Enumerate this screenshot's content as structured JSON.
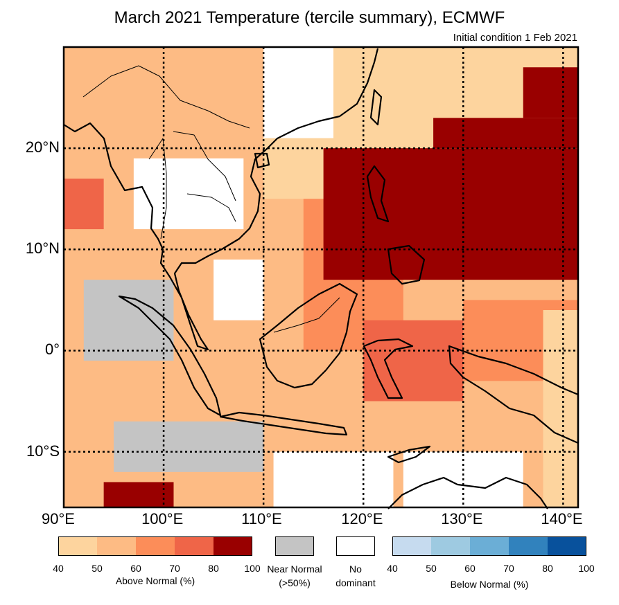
{
  "title": "March 2021 Temperature (tercile summary), ECMWF",
  "subtitle": "Initial condition 1 Feb 2021",
  "axes": {
    "lon_labels": [
      "90°E",
      "100°E",
      "110°E",
      "120°E",
      "130°E",
      "140°E"
    ],
    "lat_labels": [
      "20°N",
      "10°N",
      "0°",
      "10°S"
    ],
    "lon_range": [
      90,
      141.5
    ],
    "lat_range": [
      -15.5,
      30
    ]
  },
  "legend": {
    "above": {
      "caption": "Above Normal (%)",
      "ticks": [
        "40",
        "50",
        "60",
        "70",
        "80",
        "100"
      ],
      "colors": [
        "#fdd49e",
        "#fdbb84",
        "#fc8d59",
        "#ef6548",
        "#990000"
      ]
    },
    "near": {
      "caption_line1": "Near Normal",
      "caption_line2": "(>50%)",
      "color": "#c4c4c4"
    },
    "none": {
      "caption_line1": "No",
      "caption_line2": "dominant",
      "color": "#ffffff"
    },
    "below": {
      "caption": "Below Normal (%)",
      "ticks": [
        "40",
        "50",
        "60",
        "70",
        "80",
        "100"
      ],
      "colors": [
        "#c6dbef",
        "#9ecae1",
        "#6baed6",
        "#3182bd",
        "#08519c"
      ]
    }
  },
  "chart_data": {
    "type": "heatmap",
    "title": "March 2021 Temperature (tercile summary), ECMWF",
    "legend_order": [
      "no-dominant",
      "above-40",
      "above-50",
      "above-60",
      "above-70",
      "above-80",
      "near-normal",
      "below-40"
    ],
    "regions": [
      {
        "cat": 2,
        "lon": [
          90,
          141.5
        ],
        "lat": [
          -15.5,
          30
        ],
        "label": "background above-50"
      },
      {
        "cat": 1,
        "lon": [
          110,
          141.5
        ],
        "lat": [
          15,
          30
        ],
        "label": "north ocean above-40"
      },
      {
        "cat": 0,
        "lon": [
          110,
          117
        ],
        "lat": [
          21,
          30
        ],
        "label": "south china no dominant"
      },
      {
        "cat": 0,
        "lon": [
          97,
          108
        ],
        "lat": [
          12,
          19
        ],
        "label": "thailand no dominant"
      },
      {
        "cat": 0,
        "lon": [
          105,
          110
        ],
        "lat": [
          3,
          9
        ],
        "label": "gulf no dominant"
      },
      {
        "cat": 6,
        "lon": [
          92,
          101
        ],
        "lat": [
          -1,
          7
        ],
        "label": "sumatra near normal"
      },
      {
        "cat": 6,
        "lon": [
          95,
          110
        ],
        "lat": [
          -12,
          -7
        ],
        "label": "indian ocean near normal"
      },
      {
        "cat": 0,
        "lon": [
          111,
          123
        ],
        "lat": [
          -15.5,
          -10
        ],
        "label": "south no dominant"
      },
      {
        "cat": 0,
        "lon": [
          124,
          136
        ],
        "lat": [
          -15.5,
          -10
        ],
        "label": "australia no dominant"
      },
      {
        "cat": 3,
        "lon": [
          114,
          124
        ],
        "lat": [
          0,
          15
        ],
        "label": "south china sea above-60"
      },
      {
        "cat": 4,
        "lon": [
          120,
          130
        ],
        "lat": [
          -5,
          3
        ],
        "label": "sulawesi above-70"
      },
      {
        "cat": 5,
        "lon": [
          116,
          141.5
        ],
        "lat": [
          7,
          20
        ],
        "label": "philippines above-80"
      },
      {
        "cat": 5,
        "lon": [
          127,
          141.5
        ],
        "lat": [
          20,
          23
        ],
        "label": "pacific above-80"
      },
      {
        "cat": 5,
        "lon": [
          136,
          141.5
        ],
        "lat": [
          23,
          28
        ],
        "label": "pacific ne above-80"
      },
      {
        "cat": 4,
        "lon": [
          90,
          94
        ],
        "lat": [
          12,
          17
        ],
        "label": "bay of bengal above-70"
      },
      {
        "cat": 5,
        "lon": [
          94,
          101
        ],
        "lat": [
          -15.5,
          -13
        ],
        "label": "sw ocean above-80"
      },
      {
        "cat": 3,
        "lon": [
          130,
          141.5
        ],
        "lat": [
          -3,
          5
        ],
        "label": "east above-60"
      },
      {
        "cat": 1,
        "lon": [
          138,
          141.5
        ],
        "lat": [
          -15.5,
          4
        ],
        "label": "far east above-40"
      }
    ]
  }
}
